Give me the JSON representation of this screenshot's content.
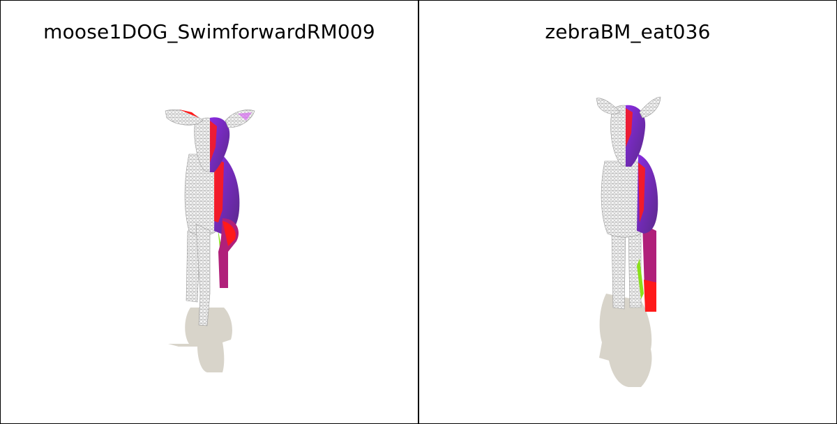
{
  "panels": [
    {
      "title": "moose1DOG_SwimforwardRM009",
      "subject": "moose-mesh-render"
    },
    {
      "title": "zebraBM_eat036",
      "subject": "zebra-mesh-render"
    }
  ],
  "colors": {
    "background": "#ffffff",
    "border": "#000000",
    "shadow": "#d8d4ca",
    "wireframe": "#bdbdbd",
    "purple": "#7a1fd6",
    "red": "#ff1010",
    "green": "#8ae01a"
  }
}
